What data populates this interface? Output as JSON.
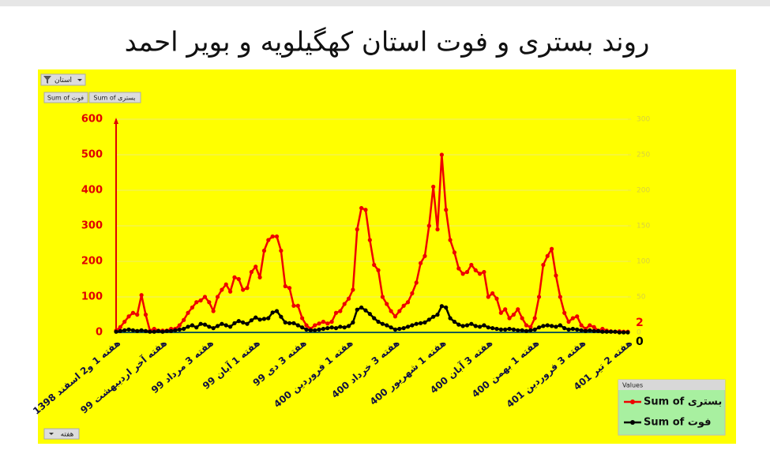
{
  "chart_data": {
    "type": "line",
    "title": "روند بستری و فوت استان کهگیلویه و بویر احمد",
    "report_filter": "استان",
    "axis_field": "هفته",
    "legend_title": "Values",
    "categories": [
      "هفته 1 و2 اسفند 1398",
      null,
      null,
      null,
      null,
      null,
      null,
      null,
      null,
      null,
      null,
      "هفته آخر اردیبهشت 99",
      null,
      null,
      null,
      null,
      null,
      null,
      null,
      null,
      null,
      null,
      "هفته 3 مرداد 99",
      null,
      null,
      null,
      null,
      null,
      null,
      null,
      null,
      null,
      null,
      "هفته 1 آبان 99",
      null,
      null,
      null,
      null,
      null,
      null,
      null,
      null,
      null,
      null,
      "هفته 3 دی 99",
      null,
      null,
      null,
      null,
      null,
      null,
      null,
      null,
      null,
      null,
      "هفته 1 فروردین 400",
      null,
      null,
      null,
      null,
      null,
      null,
      null,
      null,
      null,
      null,
      "هفته 3 خرداد 400",
      null,
      null,
      null,
      null,
      null,
      null,
      null,
      null,
      null,
      null,
      "هفته 1 شهریور 400",
      null,
      null,
      null,
      null,
      null,
      null,
      null,
      null,
      null,
      null,
      "هفته 3 آبان 400",
      null,
      null,
      null,
      null,
      null,
      null,
      null,
      null,
      null,
      null,
      "هفته 1 بهمن 400",
      null,
      null,
      null,
      null,
      null,
      null,
      null,
      null,
      null,
      null,
      "هفته 3 فروردین 401",
      null,
      null,
      null,
      null,
      null,
      null,
      null,
      null,
      null,
      null,
      "هفته 2 تیر 401"
    ],
    "series": [
      {
        "name": "Sum of بستری",
        "color": "#ee0000",
        "axis": "y",
        "values": [
          5,
          15,
          30,
          45,
          55,
          50,
          105,
          50,
          5,
          10,
          5,
          5,
          5,
          10,
          10,
          20,
          35,
          55,
          70,
          85,
          90,
          100,
          85,
          60,
          100,
          120,
          135,
          115,
          155,
          150,
          120,
          125,
          170,
          185,
          155,
          230,
          260,
          270,
          270,
          230,
          130,
          125,
          75,
          75,
          40,
          20,
          10,
          20,
          25,
          30,
          25,
          30,
          55,
          60,
          80,
          95,
          120,
          290,
          350,
          345,
          260,
          190,
          175,
          100,
          80,
          60,
          45,
          60,
          75,
          85,
          110,
          140,
          195,
          215,
          300,
          410,
          290,
          500,
          345,
          260,
          225,
          180,
          165,
          170,
          190,
          175,
          165,
          170,
          100,
          110,
          95,
          55,
          65,
          40,
          50,
          65,
          40,
          20,
          15,
          40,
          100,
          190,
          215,
          235,
          160,
          100,
          55,
          30,
          40,
          45,
          20,
          10,
          20,
          15,
          5,
          10,
          5,
          3,
          2,
          3,
          2,
          2
        ]
      },
      {
        "name": "Sum of فوت",
        "color": "#000000",
        "axis": "y2",
        "values": [
          1,
          2,
          3,
          4,
          3,
          2,
          3,
          2,
          1,
          1,
          2,
          1,
          2,
          2,
          3,
          4,
          5,
          8,
          10,
          7,
          12,
          11,
          8,
          6,
          9,
          12,
          10,
          8,
          13,
          16,
          14,
          12,
          17,
          21,
          18,
          19,
          20,
          28,
          30,
          22,
          14,
          13,
          13,
          10,
          7,
          4,
          3,
          3,
          4,
          5,
          6,
          7,
          6,
          8,
          7,
          9,
          14,
          32,
          35,
          31,
          26,
          20,
          15,
          12,
          10,
          7,
          4,
          5,
          6,
          8,
          10,
          12,
          13,
          14,
          18,
          22,
          25,
          37,
          35,
          20,
          15,
          11,
          9,
          10,
          12,
          9,
          8,
          10,
          7,
          6,
          5,
          4,
          4,
          5,
          4,
          3,
          3,
          2,
          3,
          4,
          7,
          9,
          10,
          9,
          8,
          10,
          6,
          4,
          5,
          4,
          3,
          2,
          3,
          2,
          2,
          1,
          1,
          1,
          1,
          0,
          0,
          0
        ]
      }
    ],
    "ylim": [
      0,
      600
    ],
    "yticks": [
      0,
      100,
      200,
      300,
      400,
      500,
      600
    ],
    "y2lim": [
      0,
      300
    ],
    "y2ticks": [
      0,
      50,
      100,
      150,
      200,
      250,
      300
    ],
    "grid": true
  }
}
